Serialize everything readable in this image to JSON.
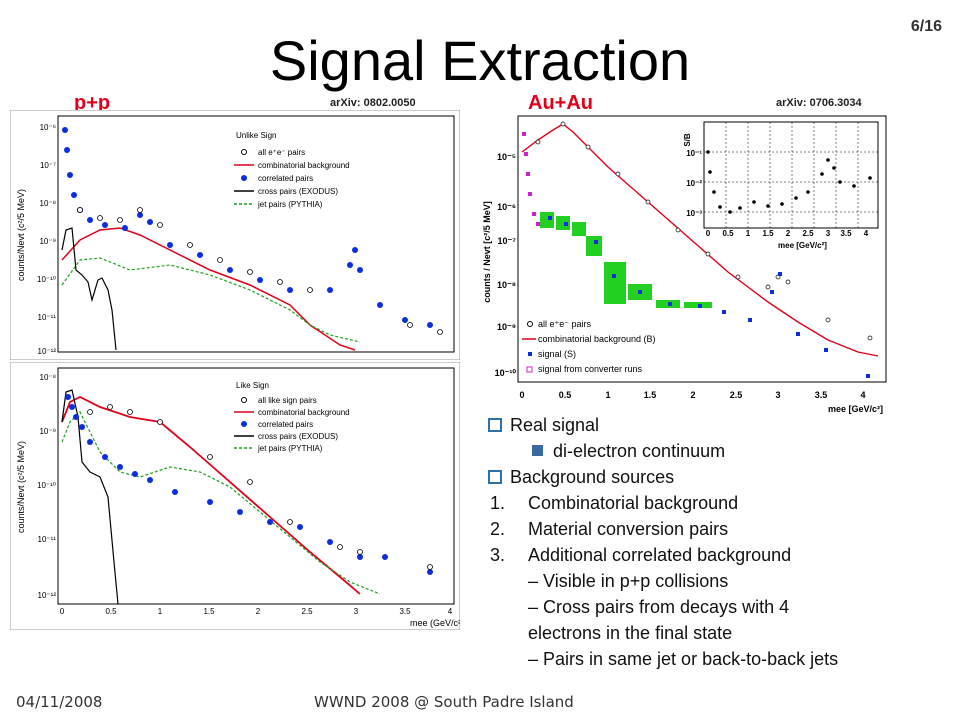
{
  "slide": {
    "title": "Signal Extraction",
    "page": "6/16",
    "footer_date": "04/11/2008",
    "footer_venue": "WWND 2008 @ South Padre Island"
  },
  "panels": {
    "pp_label": "p+p",
    "pp_arxiv": "arXiv: 0802.0050",
    "auau_label": "Au+Au",
    "auau_arxiv": "arXiv: 0706.3034",
    "top_legend": {
      "title": "Unlike Sign",
      "items": [
        "all e⁺e⁻ pairs",
        "combinatorial background",
        "correlated pairs",
        "cross pairs (EXODUS)",
        "jet pairs (PYTHIA)"
      ]
    },
    "bottom_legend": {
      "title": "Like Sign",
      "items": [
        "all like sign pairs",
        "combinatorial background",
        "correlated pairs",
        "cross pairs (EXODUS)",
        "jet pairs (PYTHIA)"
      ]
    },
    "auau_legend": [
      "all e⁺e⁻ pairs",
      "combinatorial background (B)",
      "signal (S)",
      "signal from converter runs"
    ],
    "pp_ylabel": "counts/Nevt (c²/5 MeV)",
    "pp_xlabel": "mee (GeV/c²)",
    "auau_ylabel": "counts / Nevt [c²/5 MeV]",
    "auau_xlabel": "mee [GeV/c²]",
    "inset_ylabel": "S/B",
    "inset_xlabel": "mee [GeV/c²]"
  },
  "bullets": {
    "b1": "Real signal",
    "b1a": "di-electron continuum",
    "b2": "Background sources",
    "n1": "Combinatorial background",
    "n2": "Material conversion pairs",
    "n3": "Additional correlated background",
    "d1": "– Visible in p+p collisions",
    "d2": "– Cross pairs from decays with 4",
    "d2b": "electrons in the final state",
    "d3": "– Pairs in same jet or back-to-back jets"
  },
  "chart_data": [
    {
      "type": "scatter",
      "xlabel": "mee (GeV/c²)",
      "ylabel": "counts/Nevt (c²/5 MeV)",
      "legend_title": "Unlike Sign",
      "xlim": [
        0,
        4
      ],
      "ylim": [
        1e-12,
        1e-06
      ],
      "log_y": true,
      "series": [
        {
          "name": "combinatorial background",
          "x": [
            0.1,
            0.3,
            0.5,
            0.7,
            1.0,
            1.5,
            2.0,
            2.5,
            3.0,
            3.5
          ],
          "y": [
            5e-10,
            1.5e-09,
            1.6e-09,
            1.2e-09,
            6e-10,
            2e-10,
            7e-11,
            2e-11,
            5e-12,
            1e-12
          ]
        },
        {
          "name": "correlated pairs",
          "x": [
            0.05,
            0.1,
            0.2,
            0.5,
            0.78,
            1.0,
            1.5,
            2.0,
            2.5,
            3.1,
            3.5,
            3.8
          ],
          "y": [
            5e-07,
            5e-08,
            5e-09,
            2.5e-09,
            2.5e-09,
            8e-10,
            3e-10,
            1.5e-10,
            6e-11,
            3e-10,
            1.5e-11,
            8e-12
          ]
        }
      ],
      "ylabel_sci": [
        "10⁻⁶",
        "10⁻⁷",
        "10⁻⁸",
        "10⁻⁹",
        "10⁻¹⁰",
        "10⁻¹¹",
        "10⁻¹²"
      ]
    },
    {
      "type": "scatter",
      "xlabel": "mee (GeV/c²)",
      "ylabel": "counts/Nevt (c²/5 MeV)",
      "legend_title": "Like Sign",
      "xlim": [
        0,
        4
      ],
      "ylim": [
        1e-12,
        1e-08
      ],
      "log_y": true,
      "xticks": [
        "0",
        "0.5",
        "1",
        "1.5",
        "2",
        "2.5",
        "3",
        "3.5",
        "4"
      ],
      "ylabel_sci": [
        "10⁻⁸",
        "10⁻⁹",
        "10⁻¹⁰",
        "10⁻¹¹",
        "10⁻¹²"
      ]
    },
    {
      "type": "scatter",
      "xlabel": "mee [GeV/c²]",
      "ylabel": "counts / Nevt [c²/5 MeV]",
      "xlim": [
        0,
        4.3
      ],
      "ylim": [
        1e-10,
        0.0001
      ],
      "log_y": true,
      "xticks": [
        "0",
        "0.5",
        "1",
        "1.5",
        "2",
        "2.5",
        "3",
        "3.5",
        "4"
      ],
      "ylabel_sci": [
        "10⁻⁵",
        "10⁻⁶",
        "10⁻⁷",
        "10⁻⁸",
        "10⁻⁹",
        "10⁻¹⁰"
      ]
    },
    {
      "type": "scatter",
      "xlabel": "mee [GeV/c²]",
      "ylabel": "S/B",
      "xlim": [
        0,
        4.3
      ],
      "ylim": [
        0.001,
        1
      ],
      "log_y": true,
      "xticks": [
        "0",
        "0.5",
        "1",
        "1.5",
        "2",
        "2.5",
        "3",
        "3.5",
        "4"
      ],
      "ylabel_sci": [
        "10⁻¹",
        "10⁻²",
        "10⁻³"
      ]
    }
  ],
  "colors": {
    "red": "#e0001b",
    "blue": "#0b2fe0",
    "green": "#1aa31a",
    "magenta": "#d020d0",
    "bullet_blue": "#2f6fb0"
  }
}
